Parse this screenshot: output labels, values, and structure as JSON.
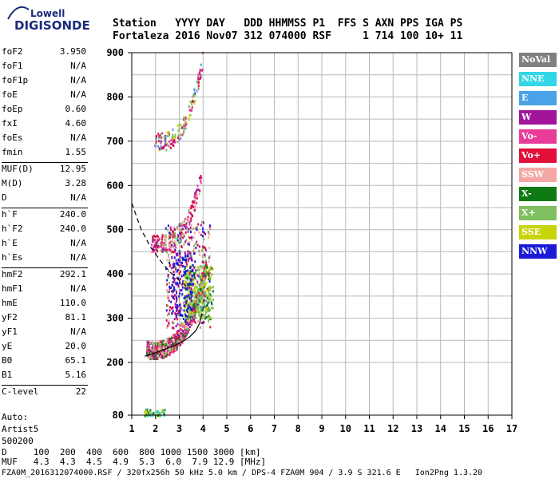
{
  "logo": {
    "brand": "Lowell",
    "product": "DIGISONDE"
  },
  "header": {
    "line1": "Station   YYYY DAY   DDD HHMMSS P1  FFS S AXN PPS IGA PS",
    "line2": "Fortaleza 2016 Nov07 312 074000 RSF     1 714 100 10+ 11"
  },
  "params": {
    "group1": [
      {
        "label": "foF2",
        "value": "3.950"
      },
      {
        "label": "foF1",
        "value": "N/A"
      },
      {
        "label": "foF1p",
        "value": "N/A"
      },
      {
        "label": "foE",
        "value": "N/A"
      },
      {
        "label": "foEp",
        "value": "0.60"
      },
      {
        "label": "fxI",
        "value": "4.60"
      },
      {
        "label": "foEs",
        "value": "N/A"
      },
      {
        "label": "fmin",
        "value": "1.55"
      }
    ],
    "group2": [
      {
        "label": "MUF(D)",
        "value": "12.95"
      },
      {
        "label": "M(D)",
        "value": "3.28"
      },
      {
        "label": "D",
        "value": "N/A"
      }
    ],
    "group3": [
      {
        "label": "h`F",
        "value": "240.0"
      },
      {
        "label": "h`F2",
        "value": "240.0"
      },
      {
        "label": "h`E",
        "value": "N/A"
      },
      {
        "label": "h`Es",
        "value": "N/A"
      }
    ],
    "group4": [
      {
        "label": "hmF2",
        "value": "292.1"
      },
      {
        "label": "hmF1",
        "value": "N/A"
      },
      {
        "label": "hmE",
        "value": "110.0"
      },
      {
        "label": "yF2",
        "value": "81.1"
      },
      {
        "label": "yF1",
        "value": "N/A"
      },
      {
        "label": "yE",
        "value": "20.0"
      },
      {
        "label": "B0",
        "value": "65.1"
      },
      {
        "label": "B1",
        "value": "5.16"
      }
    ],
    "group5": [
      {
        "label": "C-level",
        "value": "22"
      }
    ]
  },
  "auto": {
    "line1": "Auto:",
    "line2": "Artist5",
    "line3": "500200"
  },
  "legend": [
    {
      "label": "NoVal",
      "color": "#808080"
    },
    {
      "label": "NNE",
      "color": "#33d6e6"
    },
    {
      "label": "E",
      "color": "#4aa3e6"
    },
    {
      "label": "W",
      "color": "#a0159a"
    },
    {
      "label": "Vo-",
      "color": "#e83c9a"
    },
    {
      "label": "Vo+",
      "color": "#e0103a"
    },
    {
      "label": "SSW",
      "color": "#f4a7a4"
    },
    {
      "label": "X-",
      "color": "#0e7a14"
    },
    {
      "label": "X+",
      "color": "#7fbf5f"
    },
    {
      "label": "SSE",
      "color": "#c8d40a"
    },
    {
      "label": "NNW",
      "color": "#1a1ad6"
    }
  ],
  "chart_data": {
    "type": "scatter",
    "title": "",
    "xlabel": "",
    "ylabel": "",
    "xlim": [
      1,
      17
    ],
    "ylim": [
      80,
      900
    ],
    "xticks": [
      "1",
      "2",
      "3",
      "4",
      "5",
      "6",
      "7",
      "8",
      "9",
      "10",
      "11",
      "12",
      "13",
      "14",
      "15",
      "16",
      "17"
    ],
    "yticks": [
      "80",
      "200",
      "300",
      "400",
      "500",
      "600",
      "700",
      "800",
      "900"
    ],
    "grid": true
  },
  "bottom": {
    "d_row": "D     100  200  400  600  800 1000 1500 3000 [km]",
    "muf_row": "MUF   4.3  4.3  4.5  4.9  5.3  6.0  7.9 12.9 [MHz]",
    "footer": "FZA0M_2016312074000.RSF / 320fx256h 50 kHz 5.0 km / DPS-4 FZA0M 904 / 3.9 S 321.6 E   Ion2Png 1.3.20"
  }
}
